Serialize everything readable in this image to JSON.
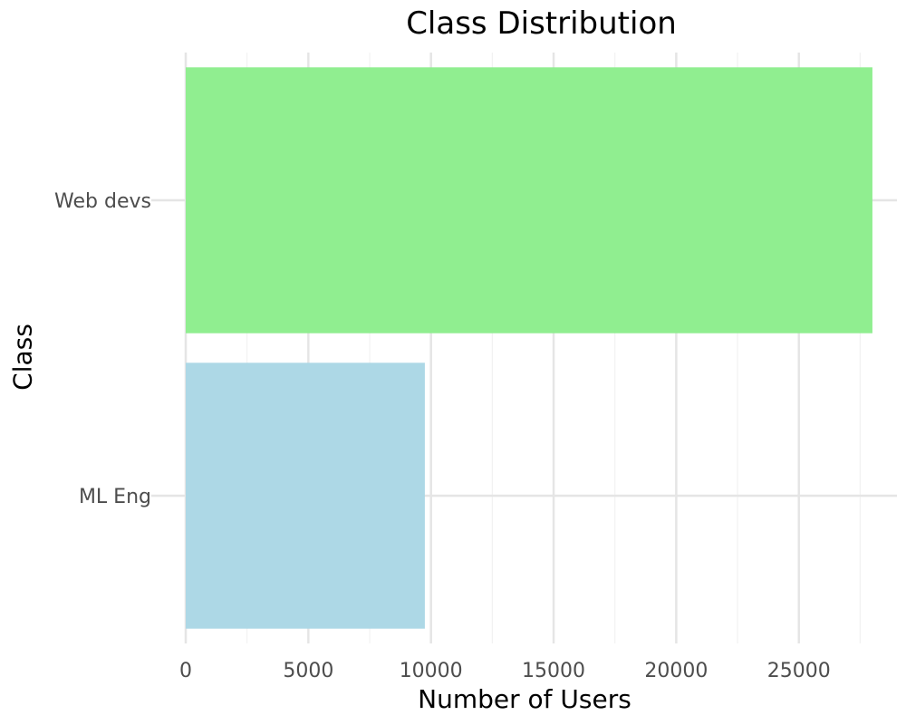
{
  "chart_data": {
    "type": "bar",
    "orientation": "horizontal",
    "title": "Class Distribution",
    "xlabel": "Number of Users",
    "ylabel": "Class",
    "categories": [
      "ML Eng",
      "Web devs"
    ],
    "values": [
      9750,
      28000
    ],
    "bar_colors": [
      "#add8e6",
      "#90ee90"
    ],
    "xticks": [
      0,
      5000,
      10000,
      15000,
      20000,
      25000
    ],
    "xticks_labels": [
      "0",
      "5000",
      "10000",
      "15000",
      "20000",
      "25000"
    ],
    "xlim": [
      0,
      29000
    ],
    "grid": true,
    "legend": "none"
  }
}
